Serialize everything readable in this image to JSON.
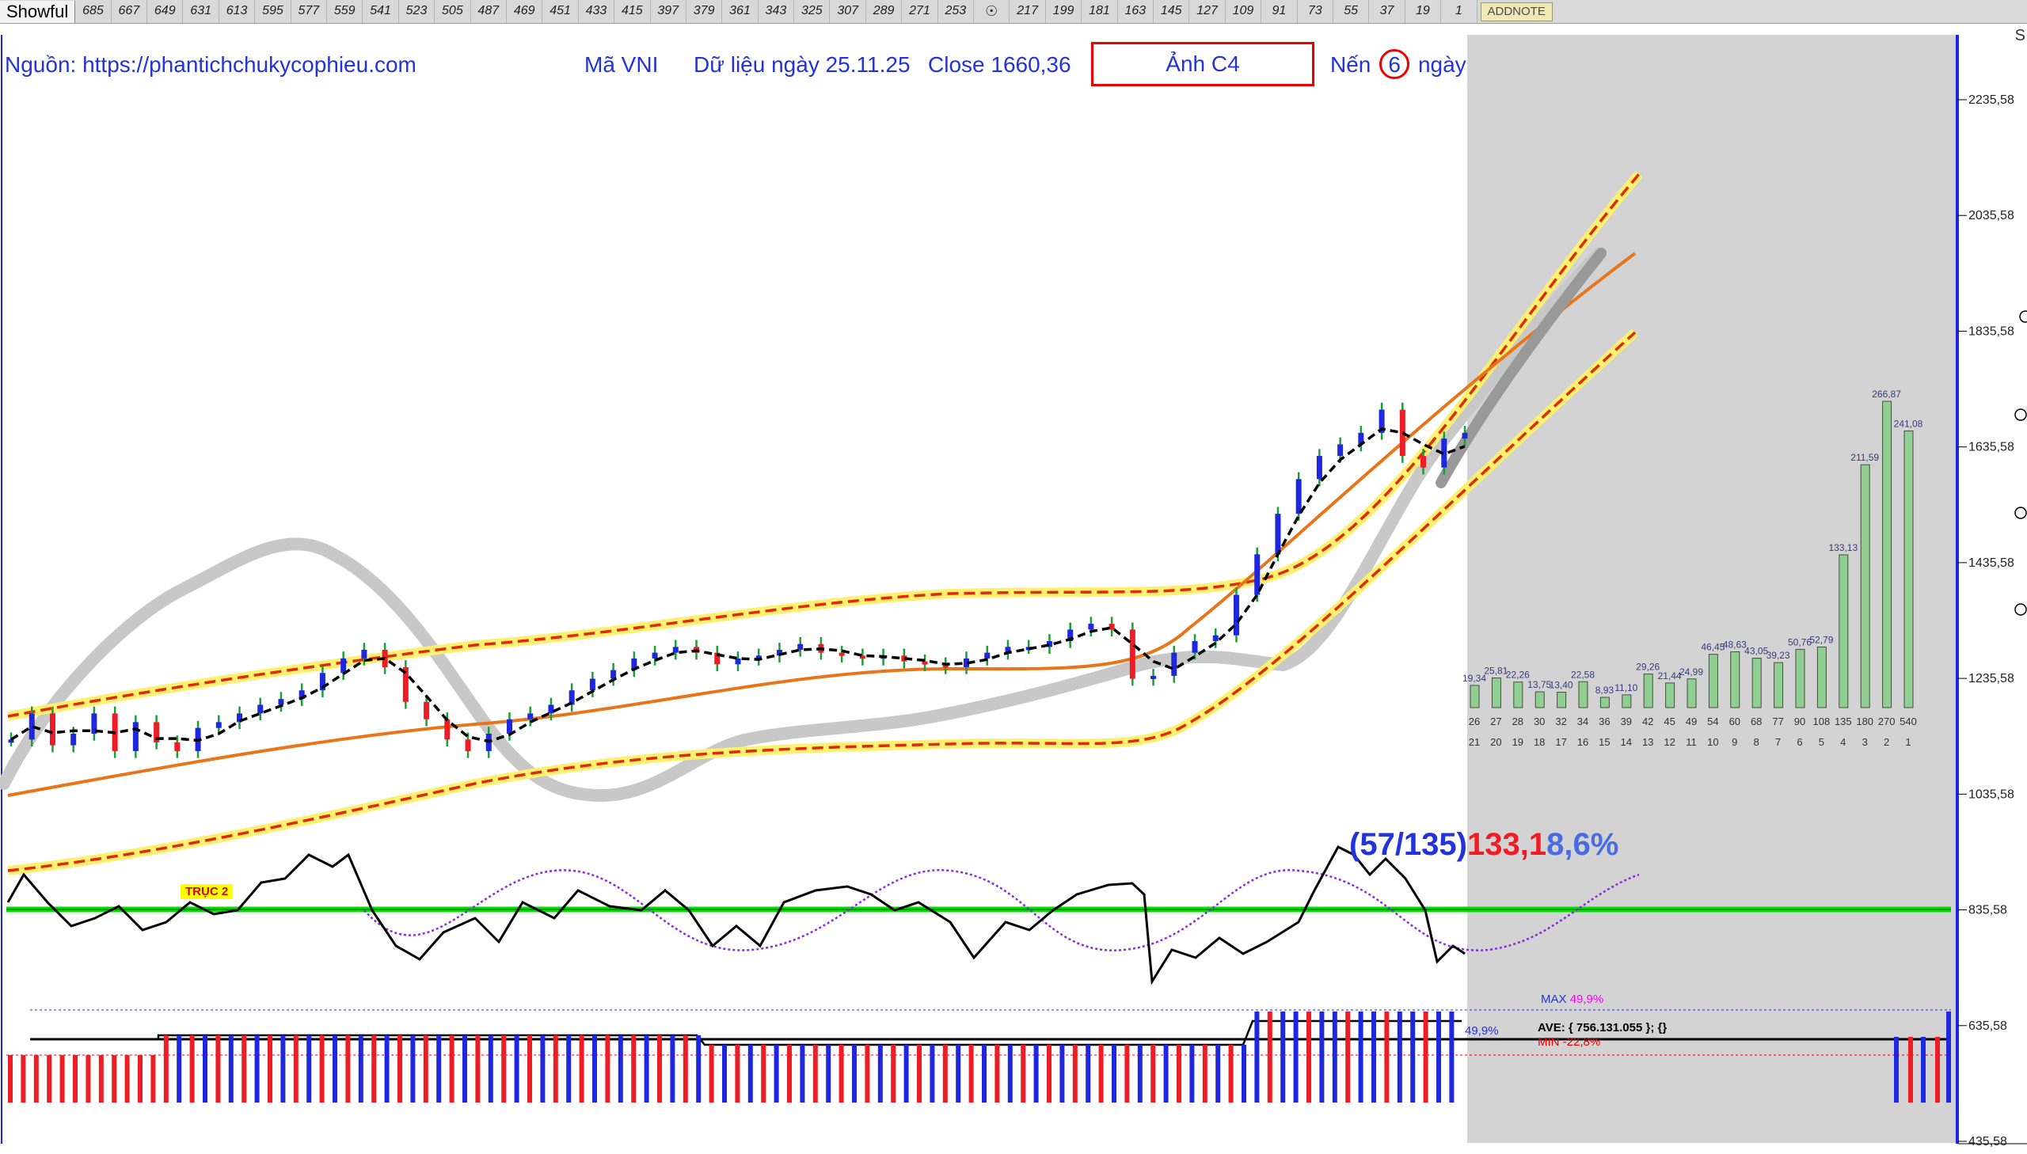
{
  "toolbar": {
    "showful_label": "Showful",
    "cycles": [
      "685",
      "667",
      "649",
      "631",
      "613",
      "595",
      "577",
      "559",
      "541",
      "523",
      "505",
      "487",
      "469",
      "451",
      "433",
      "415",
      "397",
      "379",
      "361",
      "343",
      "325",
      "307",
      "289",
      "271",
      "253",
      "",
      "217",
      "199",
      "181",
      "163",
      "145",
      "127",
      "109",
      "91",
      "73",
      "55",
      "37",
      "19",
      "1"
    ],
    "addnote_label": "ADDNOTE"
  },
  "header": {
    "source": "Nguồn: https://phantichchukycophieu.com",
    "symbol": "Mã VNI",
    "date": "Dữ liệu ngày 25.11.25",
    "close": "Close 1660,36",
    "photo": "Ảnh C4",
    "nen_prefix": "Nến",
    "nen_value": "6",
    "nen_suffix": "ngày",
    "s_label": "S"
  },
  "cycle_note": {
    "part1": "(57/135)",
    "part2": "133,1",
    "part3": "8,6%"
  },
  "truc_label": "TRỤC 2",
  "stats": {
    "max_label": "MAX",
    "max_value": "49,9%",
    "min_label": "MIN",
    "min_value": "-22,8%",
    "ave": "AVE: { 756.131.055 }; {}",
    "pct_right": "49,9%"
  },
  "colors": {
    "up": "#1f26e0",
    "down": "#ee1c25",
    "wick": "#17a035",
    "accent": "#2233dd",
    "channel": "#e8751a",
    "band": "#fff070",
    "shade": "#d3d3d3"
  },
  "chart_data": {
    "type": "line",
    "y_axis": {
      "ticks": [
        "2235,58",
        "2035,58",
        "1835,58",
        "1635,58",
        "1435,58",
        "1235,58",
        "1035,58",
        "835,58",
        "635,58",
        "435,58"
      ],
      "range": [
        435.58,
        2235.58
      ],
      "position": "right"
    },
    "shaded_region": "forecast area (right side)",
    "price_series": [
      1130,
      1175,
      1120,
      1140,
      1175,
      1110,
      1160,
      1125,
      1110,
      1150,
      1160,
      1175,
      1190,
      1200,
      1215,
      1245,
      1270,
      1285,
      1255,
      1195,
      1165,
      1130,
      1110,
      1140,
      1165,
      1175,
      1190,
      1215,
      1235,
      1250,
      1270,
      1280,
      1290,
      1280,
      1260,
      1270,
      1275,
      1285,
      1295,
      1280,
      1275,
      1270,
      1275,
      1265,
      1260,
      1255,
      1270,
      1280,
      1290,
      1290,
      1300,
      1320,
      1330,
      1320,
      1235,
      1240,
      1280,
      1300,
      1310,
      1380,
      1450,
      1520,
      1580,
      1620,
      1640,
      1660,
      1700,
      1620,
      1600,
      1650,
      1660
    ],
    "bottom_bars": {
      "labels_top": [
        "26",
        "27",
        "28",
        "30",
        "32",
        "34",
        "36",
        "39",
        "42",
        "45",
        "49",
        "54",
        "60",
        "68",
        "77",
        "90",
        "108",
        "135",
        "180",
        "270",
        "540"
      ],
      "labels_bottom": [
        "21",
        "20",
        "19",
        "18",
        "17",
        "16",
        "15",
        "14",
        "13",
        "12",
        "11",
        "10",
        "9",
        "8",
        "7",
        "6",
        "5",
        "4",
        "3",
        "2",
        "1"
      ],
      "values": [
        19.34,
        25.81,
        22.26,
        13.75,
        13.4,
        22.58,
        8.93,
        11.1,
        29.26,
        21.44,
        24.99,
        46.45,
        48.63,
        43.05,
        39.23,
        50.76,
        52.79,
        133.13,
        211.59,
        266.87,
        241.08
      ],
      "value_labels": [
        "19,34",
        "25,81",
        "22,26",
        "13,75",
        "13,40",
        "22,58",
        "8,93",
        "11,10",
        "29,26",
        "21,44",
        "24,99",
        "46,45",
        "48,63",
        "43,05",
        "39,23",
        "50,76",
        "52,79",
        "133,13",
        "211,59",
        "266,87",
        "241,08"
      ]
    }
  }
}
